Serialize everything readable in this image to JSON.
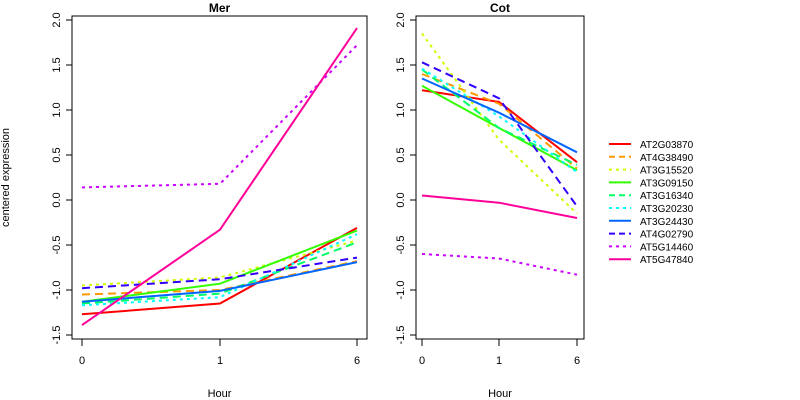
{
  "chart_data": [
    {
      "type": "line",
      "title": "Mer",
      "xlabel": "Hour",
      "ylabel": "centered expression",
      "categories": [
        "0",
        "1",
        "6"
      ],
      "ylim": [
        -1.5,
        2.0
      ],
      "yticks": [
        "-1.5",
        "-1.0",
        "-0.5",
        "0.0",
        "0.5",
        "1.0",
        "1.5",
        "2.0"
      ],
      "grid": false,
      "series": [
        {
          "name": "AT2G03870",
          "values": [
            -1.27,
            -1.15,
            -0.31
          ]
        },
        {
          "name": "AT4G38490",
          "values": [
            -1.05,
            -1.0,
            -0.68
          ]
        },
        {
          "name": "AT3G15520",
          "values": [
            -0.95,
            -0.86,
            -0.45
          ]
        },
        {
          "name": "AT3G09150",
          "values": [
            -1.13,
            -0.93,
            -0.34
          ]
        },
        {
          "name": "AT3G16340",
          "values": [
            -1.15,
            -1.04,
            -0.47
          ]
        },
        {
          "name": "AT3G20230",
          "values": [
            -1.17,
            -1.08,
            -0.38
          ]
        },
        {
          "name": "AT3G24430",
          "values": [
            -1.13,
            -1.01,
            -0.69
          ]
        },
        {
          "name": "AT4G02790",
          "values": [
            -0.98,
            -0.88,
            -0.64
          ]
        },
        {
          "name": "AT5G14460",
          "values": [
            0.14,
            0.18,
            1.72
          ]
        },
        {
          "name": "AT5G47840",
          "values": [
            -1.39,
            -0.33,
            1.91
          ]
        }
      ]
    },
    {
      "type": "line",
      "title": "Cot",
      "xlabel": "Hour",
      "ylabel": "",
      "categories": [
        "0",
        "1",
        "6"
      ],
      "ylim": [
        -1.5,
        2.0
      ],
      "yticks": [
        "-1.5",
        "-1.0",
        "-0.5",
        "0.0",
        "0.5",
        "1.0",
        "1.5",
        "2.0"
      ],
      "grid": false,
      "series": [
        {
          "name": "AT2G03870",
          "values": [
            1.22,
            1.09,
            0.42
          ]
        },
        {
          "name": "AT4G38490",
          "values": [
            1.4,
            1.07,
            0.35
          ]
        },
        {
          "name": "AT3G15520",
          "values": [
            1.85,
            0.67,
            -0.15
          ]
        },
        {
          "name": "AT3G09150",
          "values": [
            1.27,
            0.8,
            0.33
          ]
        },
        {
          "name": "AT3G16340",
          "values": [
            1.45,
            0.8,
            0.39
          ]
        },
        {
          "name": "AT3G20230",
          "values": [
            1.46,
            0.93,
            0.31
          ]
        },
        {
          "name": "AT3G24430",
          "values": [
            1.35,
            0.97,
            0.53
          ]
        },
        {
          "name": "AT4G02790",
          "values": [
            1.53,
            1.13,
            -0.07
          ]
        },
        {
          "name": "AT5G14460",
          "values": [
            -0.6,
            -0.65,
            -0.83
          ]
        },
        {
          "name": "AT5G47840",
          "values": [
            0.05,
            -0.03,
            -0.2
          ]
        }
      ]
    }
  ],
  "legend": {
    "placement": "right",
    "entries": [
      {
        "name": "AT2G03870",
        "color": "#ff0000",
        "style": "solid"
      },
      {
        "name": "AT4G38490",
        "color": "#ff9900",
        "style": "dashed"
      },
      {
        "name": "AT3G15520",
        "color": "#ccff00",
        "style": "dotted"
      },
      {
        "name": "AT3G09150",
        "color": "#33ff00",
        "style": "solid"
      },
      {
        "name": "AT3G16340",
        "color": "#00ff66",
        "style": "dashed"
      },
      {
        "name": "AT3G20230",
        "color": "#00ffff",
        "style": "dotted"
      },
      {
        "name": "AT3G24430",
        "color": "#0066ff",
        "style": "solid"
      },
      {
        "name": "AT4G02790",
        "color": "#3300ff",
        "style": "dashed"
      },
      {
        "name": "AT5G14460",
        "color": "#cc00ff",
        "style": "dotted"
      },
      {
        "name": "AT5G47840",
        "color": "#ff0099",
        "style": "solid"
      }
    ]
  }
}
